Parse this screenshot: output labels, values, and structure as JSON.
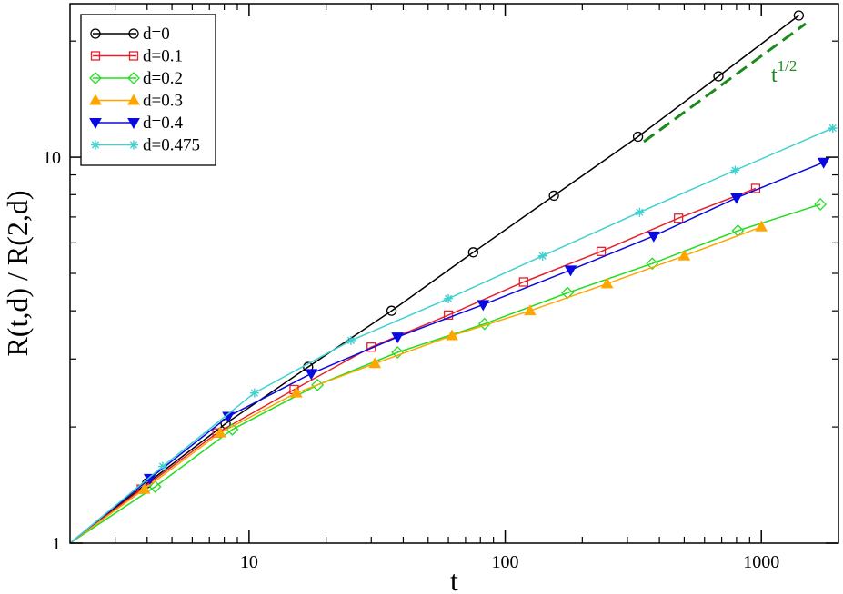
{
  "chart_data": {
    "type": "line",
    "xlabel": "t",
    "ylabel": "R(t,d) / R(2,d)",
    "xscale": "log",
    "yscale": "log",
    "xlim": [
      2,
      2000
    ],
    "ylim": [
      1,
      25
    ],
    "x_tick_labels": [
      {
        "value": 10,
        "label": "10"
      },
      {
        "value": 100,
        "label": "100"
      },
      {
        "value": 1000,
        "label": "1000"
      }
    ],
    "y_tick_labels": [
      {
        "value": 1,
        "label": "1"
      },
      {
        "value": 10,
        "label": "10"
      }
    ],
    "legend_position": "top-left",
    "series": [
      {
        "name": "d=0",
        "color": "#000000",
        "marker": "circle",
        "x": [
          2,
          4,
          8.1,
          17,
          36,
          75,
          155,
          330,
          680,
          1400
        ],
        "y": [
          1,
          1.43,
          2.04,
          2.86,
          4.0,
          5.67,
          7.95,
          11.3,
          16.2,
          23.3
        ]
      },
      {
        "name": "d=0.1",
        "color": "#e8202a",
        "marker": "square",
        "x": [
          2,
          3.8,
          7.5,
          15,
          30,
          60,
          118,
          237,
          475,
          950
        ],
        "y": [
          1,
          1.38,
          1.93,
          2.5,
          3.22,
          3.9,
          4.75,
          5.7,
          6.95,
          8.3
        ]
      },
      {
        "name": "d=0.2",
        "color": "#22dd22",
        "marker": "diamond",
        "x": [
          2,
          4.3,
          8.6,
          18.5,
          38,
          83,
          175,
          375,
          810,
          1700
        ],
        "y": [
          1,
          1.4,
          1.97,
          2.57,
          3.12,
          3.7,
          4.45,
          5.3,
          6.45,
          7.55
        ]
      },
      {
        "name": "d=0.3",
        "color": "#ffa500",
        "marker": "triangle-up",
        "x": [
          2,
          3.9,
          7.7,
          15.3,
          31,
          62,
          125,
          250,
          500,
          1000
        ],
        "y": [
          1,
          1.38,
          1.93,
          2.45,
          2.92,
          3.45,
          4.0,
          4.7,
          5.55,
          6.6
        ]
      },
      {
        "name": "d=0.4",
        "color": "#0a0ae0",
        "marker": "triangle-down",
        "x": [
          2,
          4.1,
          8.3,
          17.5,
          38,
          82,
          180,
          380,
          800,
          1750
        ],
        "y": [
          1,
          1.47,
          2.13,
          2.75,
          3.42,
          4.15,
          5.1,
          6.25,
          7.85,
          9.7
        ]
      },
      {
        "name": "d=0.475",
        "color": "#40d0d0",
        "marker": "asterisk",
        "x": [
          2,
          4.6,
          10.5,
          25,
          60,
          140,
          335,
          790,
          1900
        ],
        "y": [
          1,
          1.58,
          2.45,
          3.35,
          4.3,
          5.55,
          7.2,
          9.25,
          11.9
        ]
      }
    ],
    "annotations": [
      {
        "text": "t",
        "sup": "1/2",
        "color": "#1a8a1a"
      }
    ]
  }
}
